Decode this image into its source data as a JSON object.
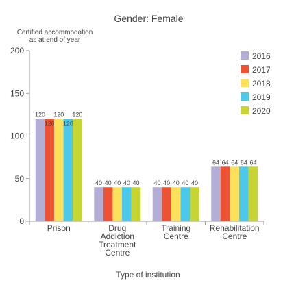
{
  "chart_data": {
    "type": "bar",
    "title": "Gender:  Female",
    "ylabel_lines": [
      "Certified accommodation",
      "as at end of year"
    ],
    "xlabel": "Type of institution",
    "categories": [
      {
        "lines": [
          "Prison"
        ]
      },
      {
        "lines": [
          "Drug",
          "Addiction",
          "Treatment",
          "Centre"
        ]
      },
      {
        "lines": [
          "Training",
          "Centre"
        ]
      },
      {
        "lines": [
          "Rehabilitation",
          "Centre"
        ]
      }
    ],
    "series": [
      {
        "name": "2016",
        "color": "#b3aed6",
        "values": [
          120,
          40,
          40,
          64
        ]
      },
      {
        "name": "2017",
        "color": "#ee5235",
        "values": [
          120,
          40,
          40,
          64
        ]
      },
      {
        "name": "2018",
        "color": "#fde15b",
        "values": [
          120,
          40,
          40,
          64
        ]
      },
      {
        "name": "2019",
        "color": "#4bc8ea",
        "values": [
          120,
          40,
          40,
          64
        ]
      },
      {
        "name": "2020",
        "color": "#c6d531",
        "values": [
          120,
          40,
          40,
          64
        ]
      }
    ],
    "ylim": [
      0,
      200
    ],
    "yticks": [
      0,
      50,
      100,
      150,
      200
    ],
    "legend_position": "top-right",
    "grid": false
  }
}
